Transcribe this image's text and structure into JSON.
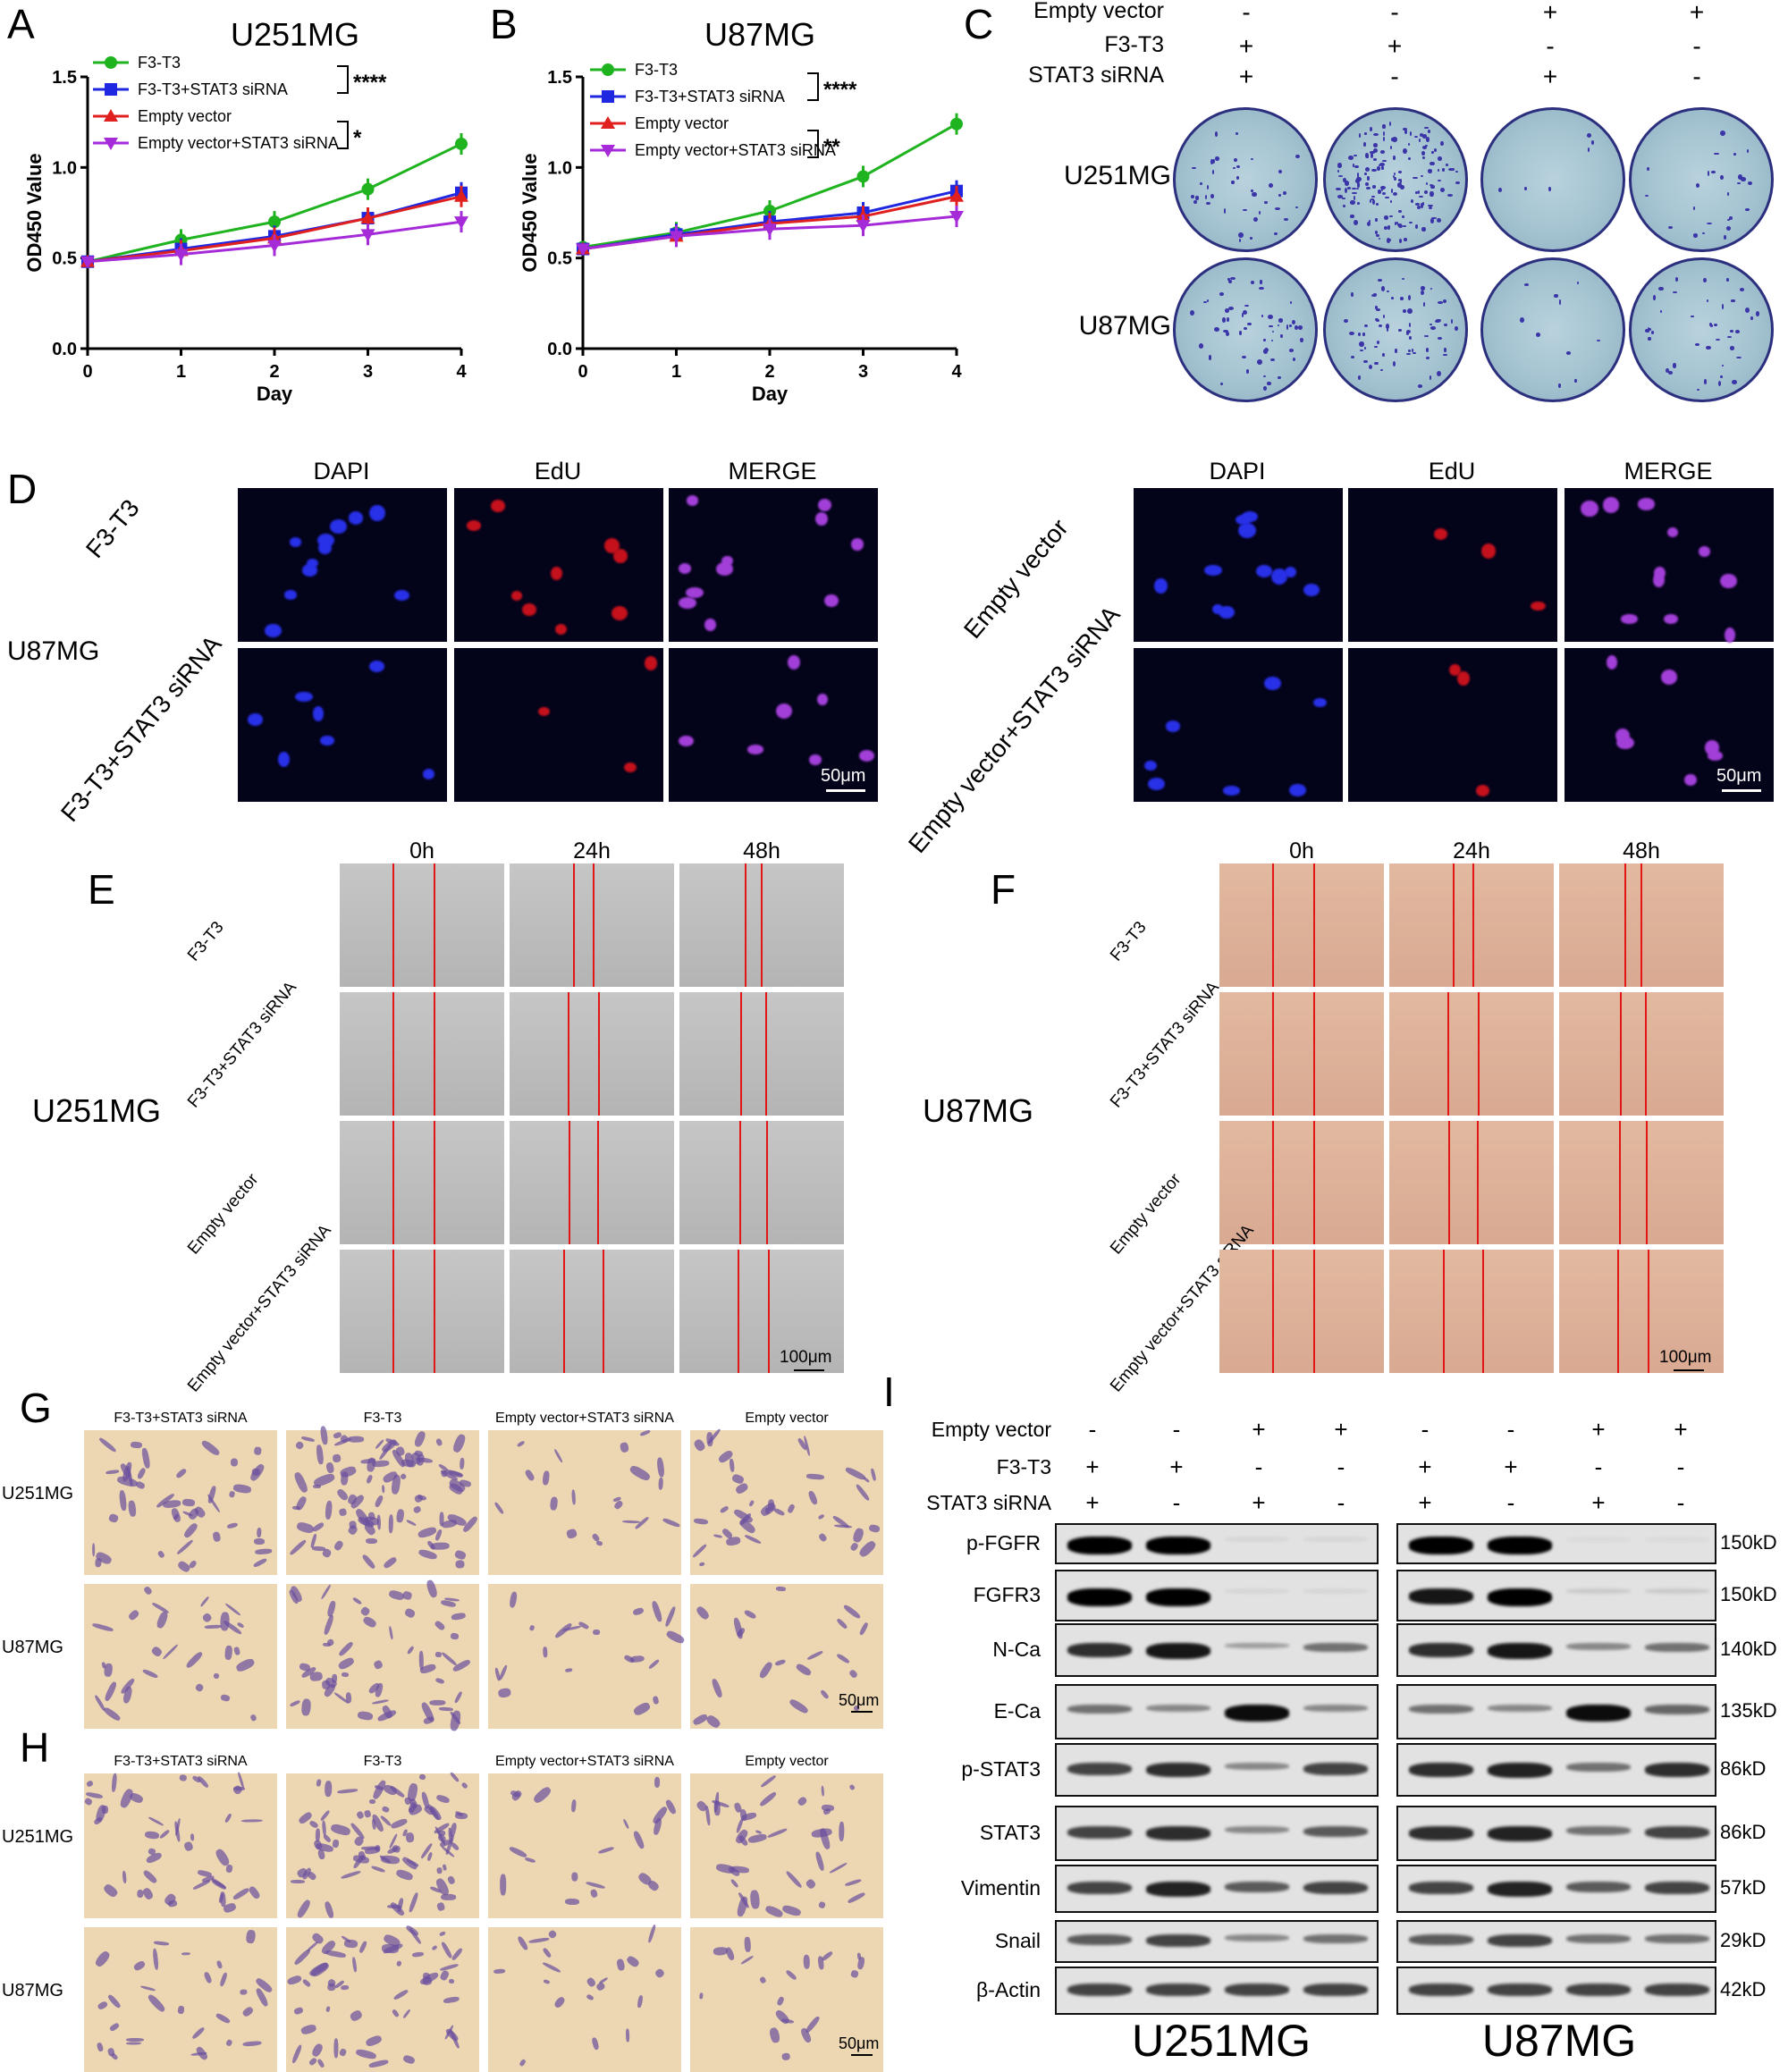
{
  "panels": {
    "A": {
      "letter": "A",
      "title": "U251MG"
    },
    "B": {
      "letter": "B",
      "title": "U87MG"
    },
    "C": {
      "letter": "C"
    },
    "D": {
      "letter": "D"
    },
    "E": {
      "letter": "E"
    },
    "F": {
      "letter": "F"
    },
    "G": {
      "letter": "G"
    },
    "H": {
      "letter": "H"
    },
    "I": {
      "letter": "I"
    }
  },
  "chart_data": [
    {
      "type": "line",
      "title": "U251MG",
      "xlabel": "Day",
      "ylabel": "OD450 Value",
      "x": [
        0,
        1,
        2,
        3,
        4
      ],
      "xlim": [
        0,
        4
      ],
      "ylim": [
        0,
        1.5
      ],
      "yticks": [
        "0.0",
        "0.5",
        "1.0",
        "1.5"
      ],
      "xticks": [
        "0",
        "1",
        "2",
        "3",
        "4"
      ],
      "series": [
        {
          "name": "F3-T3",
          "color": "#1fb31f",
          "marker": "circle",
          "values": [
            0.48,
            0.6,
            0.7,
            0.88,
            1.13
          ]
        },
        {
          "name": "F3-T3+STAT3 siRNA",
          "color": "#1f27e0",
          "marker": "square",
          "values": [
            0.48,
            0.55,
            0.62,
            0.72,
            0.86
          ]
        },
        {
          "name": "Empty vector",
          "color": "#e01f1f",
          "marker": "triangle-up",
          "values": [
            0.48,
            0.54,
            0.61,
            0.72,
            0.84
          ]
        },
        {
          "name": "Empty vector+STAT3 siRNA",
          "color": "#a52ad8",
          "marker": "triangle-down",
          "values": [
            0.48,
            0.52,
            0.57,
            0.63,
            0.7
          ]
        }
      ],
      "significance": [
        {
          "label": "****",
          "between": "F3-T3 / F3-T3+STAT3 siRNA"
        },
        {
          "label": "*",
          "between": "Empty vector / Empty vector+STAT3 siRNA"
        }
      ]
    },
    {
      "type": "line",
      "title": "U87MG",
      "xlabel": "Day",
      "ylabel": "OD450 Value",
      "x": [
        0,
        1,
        2,
        3,
        4
      ],
      "xlim": [
        0,
        4
      ],
      "ylim": [
        0,
        1.5
      ],
      "yticks": [
        "0.0",
        "0.5",
        "1.0",
        "1.5"
      ],
      "xticks": [
        "0",
        "1",
        "2",
        "3",
        "4"
      ],
      "series": [
        {
          "name": "F3-T3",
          "color": "#1fb31f",
          "marker": "circle",
          "values": [
            0.56,
            0.64,
            0.76,
            0.95,
            1.24
          ]
        },
        {
          "name": "F3-T3+STAT3 siRNA",
          "color": "#1f27e0",
          "marker": "square",
          "values": [
            0.55,
            0.63,
            0.7,
            0.75,
            0.87
          ]
        },
        {
          "name": "Empty vector",
          "color": "#e01f1f",
          "marker": "triangle-up",
          "values": [
            0.55,
            0.62,
            0.69,
            0.73,
            0.84
          ]
        },
        {
          "name": "Empty vector+STAT3 siRNA",
          "color": "#a52ad8",
          "marker": "triangle-down",
          "values": [
            0.55,
            0.62,
            0.66,
            0.68,
            0.73
          ]
        }
      ],
      "significance": [
        {
          "label": "****",
          "between": "F3-T3 / F3-T3+STAT3 siRNA"
        },
        {
          "label": "**",
          "between": "Empty vector / Empty vector+STAT3 siRNA"
        }
      ]
    }
  ],
  "panelC": {
    "conditions": [
      {
        "label": "Empty vector",
        "signs": [
          "-",
          "-",
          "+",
          "+"
        ]
      },
      {
        "label": "F3-T3",
        "signs": [
          "+",
          "+",
          "-",
          "-"
        ]
      },
      {
        "label": "STAT3 siRNA",
        "signs": [
          "+",
          "-",
          "+",
          "-"
        ]
      }
    ],
    "rows": [
      "U251MG",
      "U87MG"
    ]
  },
  "panelD": {
    "cell_line": "U87MG",
    "columns": [
      "DAPI",
      "EdU",
      "MERGE"
    ],
    "left_rows": [
      "F3-T3",
      "F3-T3+STAT3 siRNA"
    ],
    "right_rows": [
      "Empty vector",
      "Empty vector+STAT3 siRNA"
    ],
    "scale": "50μm"
  },
  "panelE": {
    "cell_line": "U251MG",
    "times": [
      "0h",
      "24h",
      "48h"
    ],
    "rows": [
      "F3-T3",
      "F3-T3+STAT3 siRNA",
      "Empty vector",
      "Empty vector+STAT3 siRNA"
    ],
    "scale": "100μm"
  },
  "panelF": {
    "cell_line": "U87MG",
    "times": [
      "0h",
      "24h",
      "48h"
    ],
    "rows": [
      "F3-T3",
      "F3-T3+STAT3 siRNA",
      "Empty vector",
      "Empty vector+STAT3 siRNA"
    ],
    "scale": "100μm"
  },
  "panelG": {
    "columns": [
      "F3-T3+STAT3 siRNA",
      "F3-T3",
      "Empty vector+STAT3 siRNA",
      "Empty vector"
    ],
    "rows": [
      "U251MG",
      "U87MG"
    ],
    "scale": "50μm"
  },
  "panelH": {
    "columns": [
      "F3-T3+STAT3 siRNA",
      "F3-T3",
      "Empty vector+STAT3 siRNA",
      "Empty vector"
    ],
    "rows": [
      "U251MG",
      "U87MG"
    ],
    "scale": "50μm"
  },
  "panelI": {
    "conditions": [
      {
        "label": "Empty vector",
        "signs": [
          "-",
          "-",
          "+",
          "+",
          "-",
          "-",
          "+",
          "+"
        ]
      },
      {
        "label": "F3-T3",
        "signs": [
          "+",
          "+",
          "-",
          "-",
          "+",
          "+",
          "-",
          "-"
        ]
      },
      {
        "label": "STAT3 siRNA",
        "signs": [
          "+",
          "-",
          "+",
          "-",
          "+",
          "-",
          "+",
          "-"
        ]
      }
    ],
    "proteins": [
      {
        "name": "p-FGFR",
        "size": "150kD"
      },
      {
        "name": "FGFR3",
        "size": "150kD"
      },
      {
        "name": "N-Ca",
        "size": "140kD"
      },
      {
        "name": "E-Ca",
        "size": "135kD"
      },
      {
        "name": "p-STAT3",
        "size": "86kD"
      },
      {
        "name": "STAT3",
        "size": "86kD"
      },
      {
        "name": "Vimentin",
        "size": "57kD"
      },
      {
        "name": "Snail",
        "size": "29kD"
      },
      {
        "name": "β-Actin",
        "size": "42kD"
      }
    ],
    "cell_lines": [
      "U251MG",
      "U87MG"
    ]
  }
}
